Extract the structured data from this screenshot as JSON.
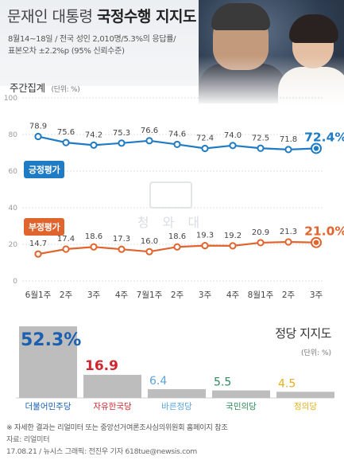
{
  "header": {
    "title_main": "문재인 대통령",
    "title_bold": "국정수행 지지도",
    "subtitle_line1": "8월14~18일 / 전국 성인 2,010명/5.3%의 응답률/",
    "subtitle_line2": "표본오차 ±2.2%p (95% 신뢰수준)"
  },
  "weekly": {
    "section_title": "주간집계",
    "unit": "(단위: %)",
    "positive_label": "긍정평가",
    "negative_label": "부정평가",
    "watermark": "청 와 대"
  },
  "colors": {
    "positive": "#1e7bc4",
    "negative": "#e0642d",
    "bar_gray": "#bdbdbd",
    "democratic": "#1a5fb0",
    "liberty_korea": "#d0262f",
    "bareun": "#5aa5d9",
    "people": "#2e8b57",
    "justice": "#e3b21a"
  },
  "chart_data": [
    {
      "type": "line",
      "title": "",
      "x": [
        "6월1주",
        "2주",
        "3주",
        "4주",
        "7월1주",
        "2주",
        "3주",
        "4주",
        "8월1주",
        "2주",
        "3주"
      ],
      "xlabel": "",
      "ylabel": "",
      "ylim": [
        0,
        100
      ],
      "yticks": [
        0,
        20,
        40,
        60,
        80,
        100
      ],
      "grid": true,
      "series": [
        {
          "name": "긍정평가",
          "values": [
            78.9,
            75.6,
            74.2,
            75.3,
            76.6,
            74.6,
            72.4,
            74.0,
            72.5,
            71.8,
            72.4
          ]
        },
        {
          "name": "부정평가",
          "values": [
            14.7,
            17.4,
            18.6,
            17.3,
            16.0,
            18.6,
            19.3,
            19.2,
            20.9,
            21.3,
            21.0
          ]
        }
      ],
      "labels_pos": [
        "78.9",
        "75.6",
        "74.2",
        "75.3",
        "76.6",
        "74.6",
        "72.4",
        "74.0",
        "72.5",
        "71.8",
        "72.4%"
      ],
      "labels_neg": [
        "14.7",
        "17.4",
        "18.6",
        "17.3",
        "16.0",
        "18.6",
        "19.3",
        "19.2",
        "20.9",
        "21.3",
        "21.0%"
      ]
    },
    {
      "type": "bar",
      "title": "정당 지지도",
      "unit": "(단위: %)",
      "categories": [
        "더불어민주당",
        "자유한국당",
        "바른정당",
        "국민의당",
        "정의당"
      ],
      "values": [
        52.3,
        16.9,
        6.4,
        5.5,
        4.5
      ],
      "value_labels": [
        "52.3%",
        "16.9",
        "6.4",
        "5.5",
        "4.5"
      ]
    }
  ],
  "footer": {
    "note": "※ 자세한 결과는 리얼미터 또는 중앙선거여론조사심의위원회 홈페이지 참조",
    "source": "자료: 리얼미터",
    "credit": "17.08.21 / 뉴시스 그래픽: 전진우 기자 618tue@newsis.com"
  }
}
